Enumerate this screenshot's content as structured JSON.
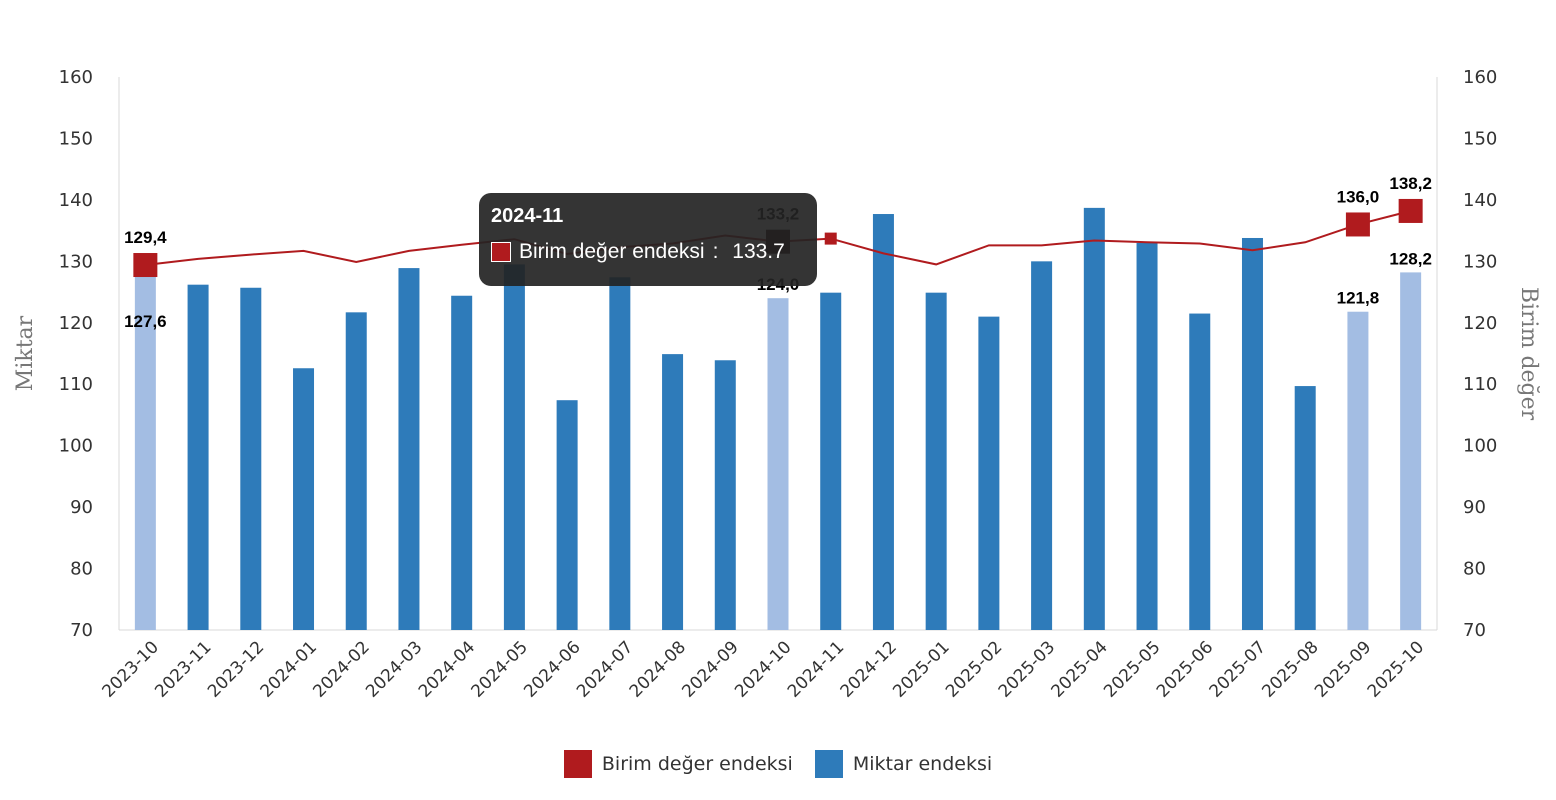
{
  "chart_data": {
    "type": "bar",
    "categories": [
      "2023-10",
      "2023-11",
      "2023-12",
      "2024-01",
      "2024-02",
      "2024-03",
      "2024-04",
      "2024-05",
      "2024-06",
      "2024-07",
      "2024-08",
      "2024-09",
      "2024-10",
      "2024-11",
      "2024-12",
      "2025-01",
      "2025-02",
      "2025-03",
      "2025-04",
      "2025-05",
      "2025-06",
      "2025-07",
      "2025-08",
      "2025-09",
      "2025-10"
    ],
    "series": [
      {
        "name": "Miktar endeksi",
        "type": "bar",
        "axis": "left",
        "color": "#2e7bba",
        "highlight_color": "#a3bde3",
        "highlighted": [
          0,
          12,
          23,
          24
        ],
        "values": [
          127.6,
          126.2,
          125.7,
          112.6,
          121.7,
          128.9,
          124.4,
          129.5,
          107.4,
          127.4,
          114.9,
          113.9,
          124.0,
          124.9,
          137.7,
          124.9,
          121.0,
          130.0,
          138.7,
          133.0,
          121.5,
          133.8,
          109.7,
          121.8,
          128.2
        ]
      },
      {
        "name": "Birim değer endeksi",
        "type": "line",
        "axis": "right",
        "color": "#b01b1e",
        "values": [
          129.4,
          130.4,
          131.1,
          131.7,
          129.9,
          131.7,
          132.7,
          133.6,
          131.2,
          132.3,
          132.9,
          134.2,
          133.2,
          133.7,
          131.3,
          129.5,
          132.6,
          132.6,
          133.4,
          133.1,
          132.9,
          131.8,
          133.1,
          136.0,
          138.2
        ]
      }
    ],
    "data_labels": [
      {
        "index": 0,
        "bar": "127,6",
        "line": "129,4"
      },
      {
        "index": 12,
        "bar": "124,0",
        "line": "133,2"
      },
      {
        "index": 23,
        "bar": "121,8",
        "line": "136,0"
      },
      {
        "index": 24,
        "bar": "128,2",
        "line": "138,2"
      }
    ],
    "ylabel": "Miktar",
    "y2label": "Birim değer",
    "ylim": [
      70,
      160
    ],
    "y2lim": [
      70,
      160
    ],
    "yticks": [
      "70",
      "80",
      "90",
      "100",
      "110",
      "120",
      "130",
      "140",
      "150",
      "160"
    ],
    "legend_position": "bottom-center",
    "grid": false
  },
  "tooltip": {
    "title": "2024-11",
    "series_name": "Birim değer endeksi",
    "value_text": "133.7",
    "separator": ": ",
    "swatch_color": "#b01b1e"
  },
  "legend": [
    {
      "label": "Birim değer endeksi",
      "color": "#b01b1e"
    },
    {
      "label": "Miktar endeksi",
      "color": "#2e7bba"
    }
  ]
}
